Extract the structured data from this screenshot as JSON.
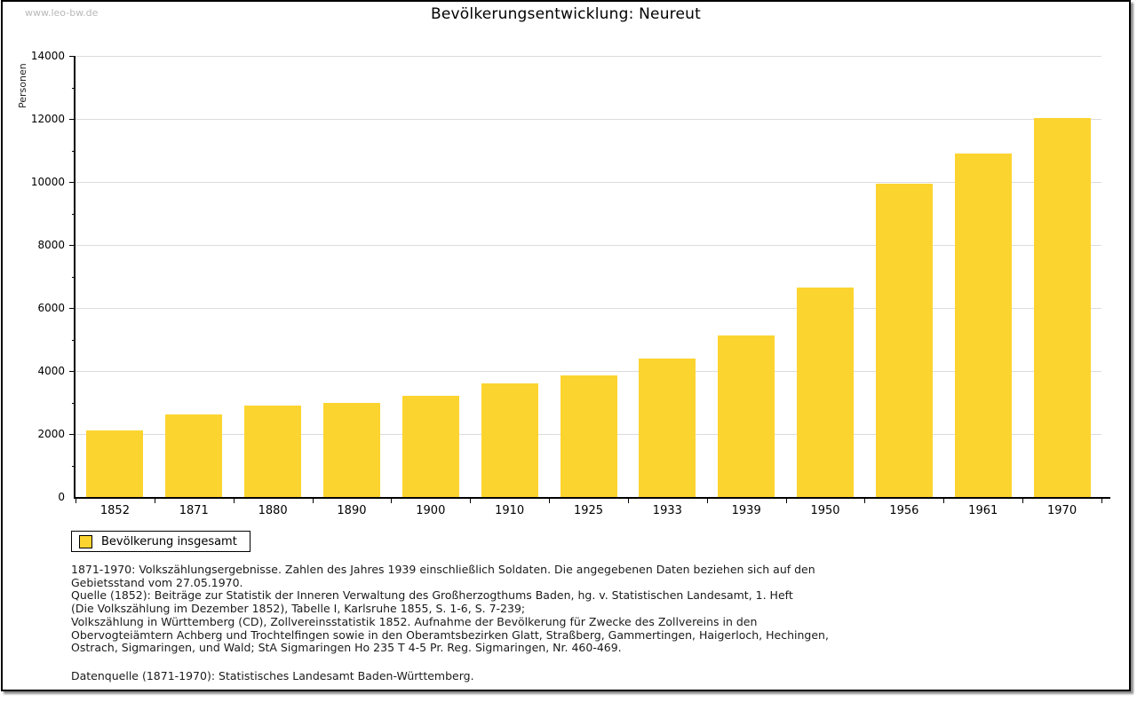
{
  "watermark": "www.leo-bw.de",
  "header": {
    "title": "Bevölkerungsentwicklung: Neureut"
  },
  "chart_data": {
    "type": "bar",
    "title": "Bevölkerungsentwicklung: Neureut",
    "xlabel": "",
    "ylabel": "Personen",
    "categories": [
      "1852",
      "1871",
      "1880",
      "1890",
      "1900",
      "1910",
      "1925",
      "1933",
      "1939",
      "1950",
      "1956",
      "1961",
      "1970"
    ],
    "series": [
      {
        "name": "Bevölkerung insgesamt",
        "values": [
          2100,
          2630,
          2910,
          3000,
          3220,
          3610,
          3850,
          4390,
          5120,
          6660,
          9940,
          10890,
          12030
        ]
      }
    ],
    "ylim": [
      0,
      14000
    ],
    "ytick_step": 2000,
    "yminor_step": 1000,
    "grid": true,
    "gridline_color": "#dcdcdc",
    "bar_color": "#fcd42f",
    "legend_position": "bottom-left"
  },
  "legend": {
    "label": "Bevölkerung insgesamt",
    "swatch_color": "#fcd42f"
  },
  "footer": {
    "lines": [
      "1871-1970: Volkszählungsergebnisse. Zahlen des Jahres 1939 einschließlich Soldaten. Die angegebenen Daten beziehen sich auf den",
      "Gebietsstand vom 27.05.1970.",
      "Quelle (1852): Beiträge zur Statistik der Inneren Verwaltung des Großherzogthums Baden, hg. v. Statistischen Landesamt, 1. Heft",
      "(Die Volkszählung im Dezember 1852), Tabelle I, Karlsruhe 1855, S. 1-6, S. 7-239;",
      "Volkszählung in Württemberg (CD), Zollvereinsstatistik 1852. Aufnahme der Bevölkerung für Zwecke des Zollvereins in den",
      "Obervogteiämtern Achberg und Trochtelfingen sowie in den Oberamtsbezirken Glatt, Straßberg, Gammertingen, Haigerloch, Hechingen,",
      "Ostrach, Sigmaringen, und Wald; StA Sigmaringen Ho 235 T 4-5 Pr. Reg. Sigmaringen, Nr. 460-469."
    ],
    "datenquelle": "Datenquelle (1871-1970): Statistisches Landesamt Baden-Württemberg."
  }
}
